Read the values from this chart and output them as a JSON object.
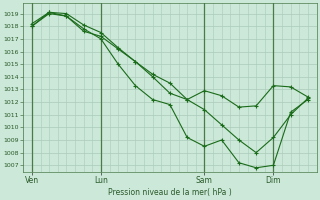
{
  "xlabel": "Pression niveau de la mer( hPa )",
  "ylim": [
    1006.5,
    1019.8
  ],
  "yticks": [
    1007,
    1008,
    1009,
    1010,
    1011,
    1012,
    1013,
    1014,
    1015,
    1016,
    1017,
    1018,
    1019
  ],
  "background_color": "#cce8d8",
  "grid_color": "#aacaba",
  "line_color": "#1a6b1a",
  "day_labels": [
    "Ven",
    "Lun",
    "Sam",
    "Dim"
  ],
  "day_positions": [
    0,
    48,
    120,
    168
  ],
  "xlim": [
    -6,
    198
  ],
  "vline_x": [
    0,
    48,
    120,
    168
  ],
  "series": [
    {
      "x": [
        0,
        12,
        24,
        36,
        48,
        60,
        72,
        84,
        96,
        108,
        120,
        132,
        144,
        156,
        168,
        180,
        192
      ],
      "y": [
        1018.2,
        1019.1,
        1018.8,
        1017.6,
        1017.2,
        1016.2,
        1015.2,
        1014.0,
        1012.7,
        1012.2,
        1012.9,
        1012.5,
        1011.6,
        1011.7,
        1013.3,
        1013.2,
        1012.4
      ]
    },
    {
      "x": [
        0,
        12,
        24,
        36,
        48,
        60,
        72,
        84,
        96,
        108,
        120,
        132,
        144,
        156,
        168,
        180,
        192
      ],
      "y": [
        1018.0,
        1019.1,
        1019.0,
        1018.1,
        1017.5,
        1016.3,
        1015.2,
        1014.2,
        1013.5,
        1012.2,
        1011.4,
        1010.2,
        1009.0,
        1008.0,
        1009.2,
        1011.0,
        1012.3
      ]
    },
    {
      "x": [
        0,
        12,
        24,
        36,
        48,
        60,
        72,
        84,
        96,
        108,
        120,
        132,
        144,
        156,
        168,
        180,
        192
      ],
      "y": [
        1018.0,
        1019.0,
        1018.8,
        1017.8,
        1017.0,
        1015.0,
        1013.3,
        1012.2,
        1011.8,
        1009.2,
        1008.5,
        1009.0,
        1007.2,
        1006.8,
        1007.0,
        1011.2,
        1012.2
      ]
    }
  ]
}
